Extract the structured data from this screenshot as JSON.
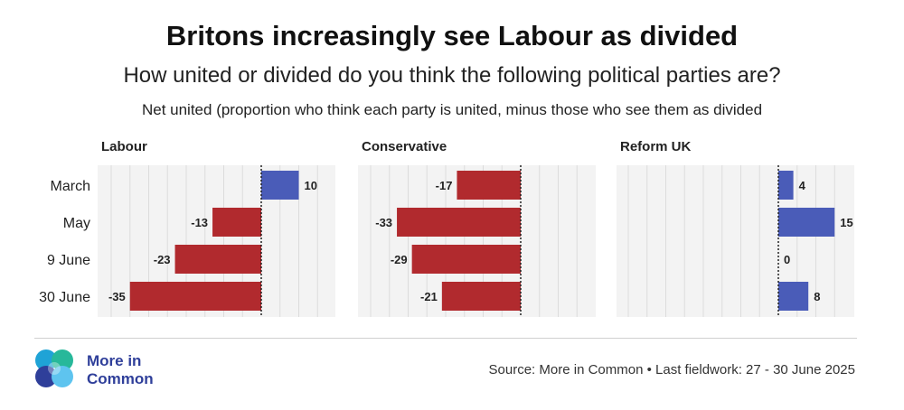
{
  "title": "Britons increasingly see Labour as divided",
  "subtitle": "How united or divided do you think the following political parties are?",
  "note": "Net united (proportion who think each party is united, minus those who see them as divided",
  "brand": {
    "line1": "More in",
    "line2": "Common"
  },
  "source": "Source: More in Common • Last fieldwork: 27 - 30 June 2025",
  "colors": {
    "negative": "#b12a2e",
    "positive": "#4a5cb8",
    "panel_bg": "#f3f3f3",
    "grid": "#dcdcdc"
  },
  "chart_data": {
    "type": "bar",
    "orientation": "horizontal",
    "categories": [
      "March",
      "May",
      "9 June",
      "30 June"
    ],
    "panels": [
      {
        "name": "Labour",
        "values": [
          10,
          -13,
          -23,
          -35
        ]
      },
      {
        "name": "Conservative",
        "values": [
          -17,
          -33,
          -29,
          -21
        ]
      },
      {
        "name": "Reform UK",
        "values": [
          4,
          15,
          0,
          8
        ]
      }
    ],
    "grid": true
  }
}
